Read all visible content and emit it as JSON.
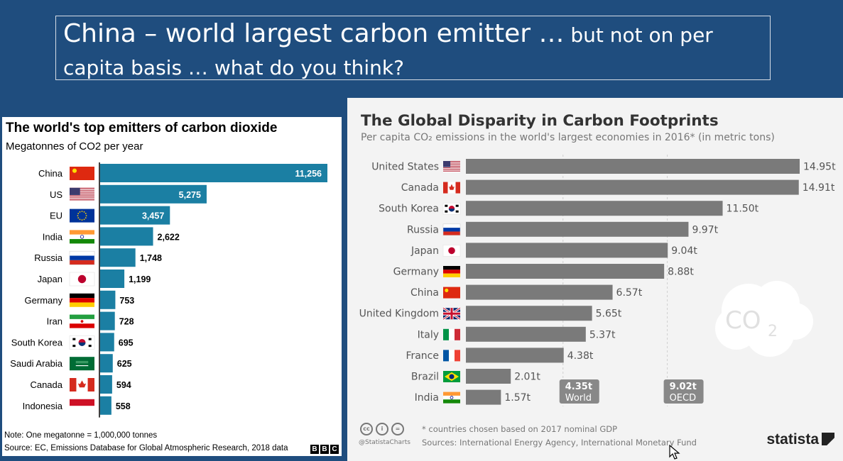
{
  "slide": {
    "title_big": "China – world largest carbon emitter …",
    "title_small_1": " but not on per",
    "title_small_2": "capita basis … what do you think?"
  },
  "left_panel": {
    "title": "The world's top emitters of carbon dioxide",
    "subtitle": "Megatonnes of CO2 per year",
    "note": "Note: One megatonne = 1,000,000 tonnes",
    "source": "Source: EC, Emissions Database for Global Atmospheric Research, 2018 data",
    "logo_letters": [
      "B",
      "B",
      "C"
    ]
  },
  "right_panel": {
    "title": "The Global Disparity in Carbon Footprints",
    "subtitle": "Per capita CO₂ emissions in the world's largest economies in 2016* (in metric tons)",
    "footnote": "* countries chosen based on 2017 nominal GDP",
    "sources": "Sources: International Energy Agency, International Monetary Fund",
    "handle": "@StatistaCharts",
    "brand": "statista",
    "co2_cloud_label": "CO",
    "co2_cloud_sub": "2",
    "cc_icons": [
      "cc",
      "i",
      "="
    ]
  },
  "chart_data": [
    {
      "type": "bar",
      "orientation": "horizontal",
      "title": "The world's top emitters of carbon dioxide",
      "subtitle": "Megatonnes of CO2 per year",
      "categories": [
        "China",
        "US",
        "EU",
        "India",
        "Russia",
        "Japan",
        "Germany",
        "Iran",
        "South Korea",
        "Saudi Arabia",
        "Canada",
        "Indonesia"
      ],
      "values": [
        11256,
        5275,
        3457,
        2622,
        1748,
        1199,
        753,
        728,
        695,
        625,
        594,
        558
      ],
      "labels": [
        "11,256",
        "5,275",
        "3,457",
        "2,622",
        "1,748",
        "1,199",
        "753",
        "728",
        "695",
        "625",
        "594",
        "558"
      ],
      "bar_color": "#1b7fa3",
      "xlim": [
        0,
        11256
      ]
    },
    {
      "type": "bar",
      "orientation": "horizontal",
      "title": "The Global Disparity in Carbon Footprints",
      "categories": [
        "United States",
        "Canada",
        "South Korea",
        "Russia",
        "Japan",
        "Germany",
        "China",
        "United Kingdom",
        "Italy",
        "France",
        "Brazil",
        "India"
      ],
      "values": [
        14.95,
        14.91,
        11.5,
        9.97,
        9.04,
        8.88,
        6.57,
        5.65,
        5.37,
        4.38,
        2.01,
        1.57
      ],
      "labels": [
        "14.95t",
        "14.91t",
        "11.50t",
        "9.97t",
        "9.04t",
        "8.88t",
        "6.57t",
        "5.65t",
        "5.37t",
        "4.38t",
        "2.01t",
        "1.57t"
      ],
      "bar_color": "#7a7a7a",
      "xlim": [
        0,
        14.95
      ],
      "reference_lines": [
        {
          "name": "World",
          "value": 4.35,
          "label": "4.35t"
        },
        {
          "name": "OECD",
          "value": 9.02,
          "label": "9.02t"
        }
      ]
    }
  ]
}
